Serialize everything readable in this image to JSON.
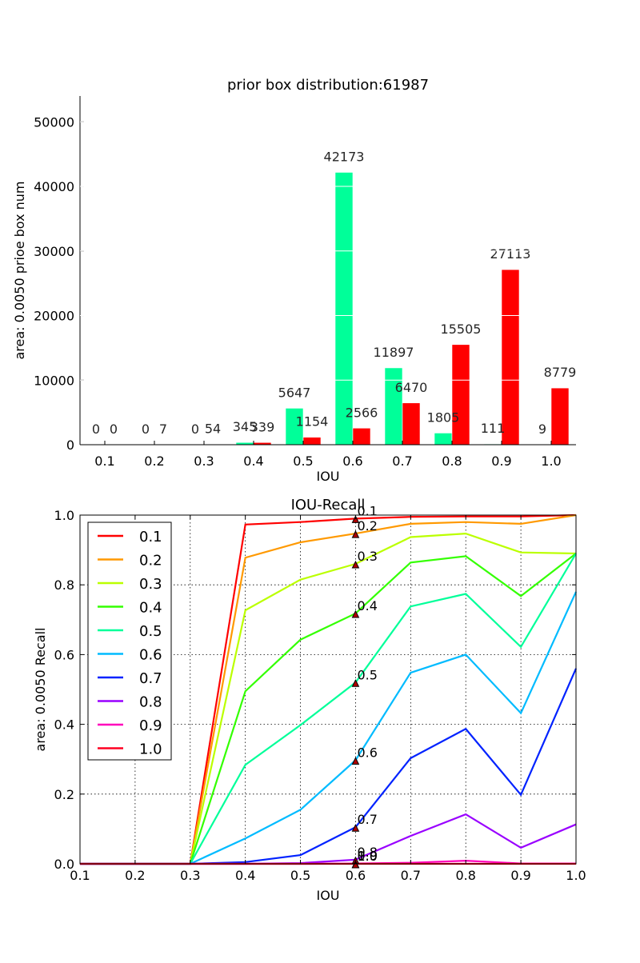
{
  "chart_data": [
    {
      "type": "bar",
      "title": "prior box distribution:61987",
      "xlabel": "IOU",
      "ylabel": "area: 0.0050 prioe box num",
      "categories": [
        "0.1",
        "0.2",
        "0.3",
        "0.4",
        "0.5",
        "0.6",
        "0.7",
        "0.8",
        "0.9",
        "1.0"
      ],
      "ylim": [
        0,
        54000
      ],
      "yticks": [
        0,
        10000,
        20000,
        30000,
        40000,
        50000
      ],
      "series": [
        {
          "color": "#00ff99",
          "values": [
            0,
            0,
            0,
            345,
            5647,
            42173,
            11897,
            1805,
            111,
            9
          ]
        },
        {
          "color": "#ff0000",
          "values": [
            0,
            7,
            54,
            339,
            1154,
            2566,
            6470,
            15505,
            27113,
            8779
          ]
        }
      ]
    },
    {
      "type": "line",
      "title": "IOU-Recall",
      "xlabel": "IOU",
      "ylabel": "area: 0.0050 Recall",
      "x": [
        0.1,
        0.2,
        0.3,
        0.4,
        0.5,
        0.6,
        0.7,
        0.8,
        0.9,
        1.0
      ],
      "xlim": [
        0.1,
        1.0
      ],
      "ylim": [
        0.0,
        1.0
      ],
      "xticks": [
        "0.1",
        "0.2",
        "0.3",
        "0.4",
        "0.5",
        "0.6",
        "0.7",
        "0.8",
        "0.9",
        "1.0"
      ],
      "yticks": [
        "0.0",
        "0.2",
        "0.4",
        "0.6",
        "0.8",
        "1.0"
      ],
      "grid": true,
      "legend_position": "upper-left",
      "marker_x": 0.6,
      "series": [
        {
          "name": "0.1",
          "color": "#ff0000",
          "values": [
            0,
            0,
            0,
            0.973,
            0.98,
            0.99,
            0.995,
            0.996,
            0.996,
            1.0
          ]
        },
        {
          "name": "0.2",
          "color": "#ff9900",
          "values": [
            0,
            0,
            0,
            0.878,
            0.922,
            0.947,
            0.975,
            0.98,
            0.975,
            1.0
          ]
        },
        {
          "name": "0.3",
          "color": "#bbff00",
          "values": [
            0,
            0,
            0,
            0.727,
            0.815,
            0.86,
            0.937,
            0.947,
            0.893,
            0.89
          ]
        },
        {
          "name": "0.4",
          "color": "#33ff00",
          "values": [
            0,
            0,
            0,
            0.495,
            0.643,
            0.718,
            0.864,
            0.882,
            0.768,
            0.89
          ]
        },
        {
          "name": "0.5",
          "color": "#00ff99",
          "values": [
            0,
            0,
            0,
            0.284,
            0.398,
            0.52,
            0.738,
            0.774,
            0.622,
            0.89
          ]
        },
        {
          "name": "0.6",
          "color": "#00bbff",
          "values": [
            0,
            0,
            0,
            0.073,
            0.155,
            0.297,
            0.548,
            0.6,
            0.432,
            0.78
          ]
        },
        {
          "name": "0.7",
          "color": "#0022ff",
          "values": [
            0,
            0,
            0,
            0.005,
            0.025,
            0.105,
            0.303,
            0.387,
            0.198,
            0.56
          ]
        },
        {
          "name": "0.8",
          "color": "#9900ff",
          "values": [
            0,
            0,
            0,
            0,
            0.002,
            0.012,
            0.08,
            0.142,
            0.046,
            0.113
          ]
        },
        {
          "name": "0.9",
          "color": "#ff00bb",
          "values": [
            0,
            0,
            0,
            0,
            0,
            0.001,
            0.003,
            0.009,
            0.001,
            0.001
          ]
        },
        {
          "name": "1.0",
          "color": "#ff0022",
          "values": [
            0,
            0,
            0,
            0,
            0,
            0,
            0,
            0,
            0,
            0
          ]
        }
      ]
    }
  ]
}
